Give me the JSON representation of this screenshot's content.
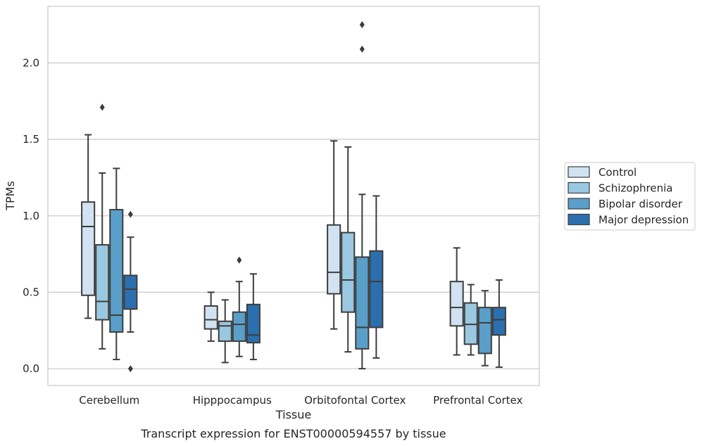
{
  "chart_data": {
    "type": "boxplot",
    "title": "",
    "caption": "Transcript expression for ENST00000594557 by tissue",
    "xlabel": "Tissue",
    "ylabel": "TPMs",
    "ylim": [
      -0.11,
      2.37
    ],
    "yticks": [
      "0.0",
      "0.5",
      "1.0",
      "1.5",
      "2.0"
    ],
    "grid": "horizontal",
    "legend_position": "right",
    "categories": [
      "Cerebellum",
      "Hipppocampus",
      "Orbitofontal Cortex",
      "Prefrontal Cortex"
    ],
    "series": [
      {
        "name": "Control",
        "color": "#d1e2f2",
        "boxes": [
          {
            "whisker_low": 0.33,
            "q1": 0.48,
            "median": 0.93,
            "q3": 1.09,
            "whisker_high": 1.53,
            "outliers": []
          },
          {
            "whisker_low": 0.18,
            "q1": 0.26,
            "median": 0.32,
            "q3": 0.41,
            "whisker_high": 0.5,
            "outliers": []
          },
          {
            "whisker_low": 0.26,
            "q1": 0.49,
            "median": 0.63,
            "q3": 0.94,
            "whisker_high": 1.49,
            "outliers": []
          },
          {
            "whisker_low": 0.09,
            "q1": 0.28,
            "median": 0.4,
            "q3": 0.57,
            "whisker_high": 0.79,
            "outliers": []
          }
        ]
      },
      {
        "name": "Schizophrenia",
        "color": "#9ac8e0",
        "boxes": [
          {
            "whisker_low": 0.13,
            "q1": 0.32,
            "median": 0.44,
            "q3": 0.81,
            "whisker_high": 1.28,
            "outliers": [
              1.71
            ]
          },
          {
            "whisker_low": 0.04,
            "q1": 0.18,
            "median": 0.28,
            "q3": 0.31,
            "whisker_high": 0.45,
            "outliers": []
          },
          {
            "whisker_low": 0.11,
            "q1": 0.37,
            "median": 0.58,
            "q3": 0.89,
            "whisker_high": 1.45,
            "outliers": []
          },
          {
            "whisker_low": 0.09,
            "q1": 0.16,
            "median": 0.29,
            "q3": 0.43,
            "whisker_high": 0.55,
            "outliers": []
          }
        ]
      },
      {
        "name": "Bipolar disorder",
        "color": "#5a9fc9",
        "boxes": [
          {
            "whisker_low": 0.06,
            "q1": 0.24,
            "median": 0.35,
            "q3": 1.04,
            "whisker_high": 1.31,
            "outliers": []
          },
          {
            "whisker_low": 0.08,
            "q1": 0.18,
            "median": 0.29,
            "q3": 0.37,
            "whisker_high": 0.57,
            "outliers": [
              0.71
            ]
          },
          {
            "whisker_low": 0.0,
            "q1": 0.13,
            "median": 0.27,
            "q3": 0.73,
            "whisker_high": 1.14,
            "outliers": [
              2.09,
              2.25
            ]
          },
          {
            "whisker_low": 0.02,
            "q1": 0.1,
            "median": 0.3,
            "q3": 0.4,
            "whisker_high": 0.51,
            "outliers": []
          }
        ]
      },
      {
        "name": "Major depression",
        "color": "#2b6fae",
        "boxes": [
          {
            "whisker_low": 0.24,
            "q1": 0.39,
            "median": 0.52,
            "q3": 0.61,
            "whisker_high": 0.86,
            "outliers": [
              0.0,
              1.01
            ]
          },
          {
            "whisker_low": 0.06,
            "q1": 0.17,
            "median": 0.22,
            "q3": 0.42,
            "whisker_high": 0.62,
            "outliers": []
          },
          {
            "whisker_low": 0.07,
            "q1": 0.27,
            "median": 0.57,
            "q3": 0.77,
            "whisker_high": 1.13,
            "outliers": []
          },
          {
            "whisker_low": 0.01,
            "q1": 0.22,
            "median": 0.32,
            "q3": 0.4,
            "whisker_high": 0.58,
            "outliers": []
          }
        ]
      }
    ]
  }
}
